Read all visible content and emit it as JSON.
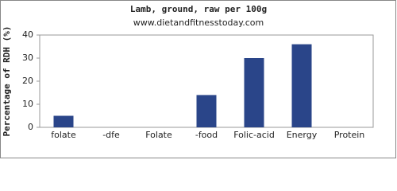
{
  "chart_data": {
    "type": "bar",
    "title": "Lamb, ground, raw per 100g",
    "subtitle": "www.dietandfitnesstoday.com",
    "y_label": "Percentage of RDH (%)",
    "categories": [
      "folate",
      "-dfe",
      "Folate",
      "-food",
      "Folic-acid",
      "Energy",
      "Protein"
    ],
    "values": [
      5,
      0,
      0,
      14,
      30,
      36,
      0
    ],
    "color": "#2a4589",
    "ylim": [
      0,
      40
    ],
    "yticks": [
      0,
      10,
      20,
      30,
      40
    ],
    "grid": false
  }
}
